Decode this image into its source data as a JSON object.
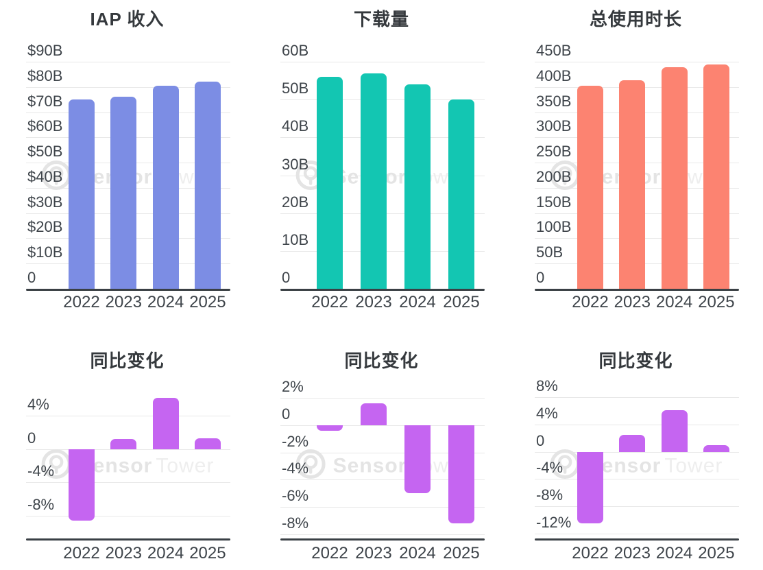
{
  "watermark": {
    "brand_bold": "Sensor",
    "brand_light": "Tower"
  },
  "theme": {
    "background": "#ffffff",
    "grid_color": "#e8e8e8",
    "axis_color": "#3a4045",
    "tick_color": "#3e444a",
    "title_color": "#35393d",
    "watermark_color": "#e4e4e4"
  },
  "chart_data": [
    {
      "name": "iap-revenue",
      "type": "bar",
      "title": "IAP 收入",
      "categories": [
        "2022",
        "2023",
        "2024",
        "2025"
      ],
      "values": [
        75,
        76,
        80.5,
        82
      ],
      "ylim": [
        0,
        90
      ],
      "grid": true,
      "legend": "none",
      "ylabel": "",
      "xlabel": "",
      "ticks": [
        {
          "label": "$90B",
          "value": 90
        },
        {
          "label": "$80B",
          "value": 80
        },
        {
          "label": "$70B",
          "value": 70
        },
        {
          "label": "$60B",
          "value": 60
        },
        {
          "label": "$50B",
          "value": 50
        },
        {
          "label": "$40B",
          "value": 40
        },
        {
          "label": "$30B",
          "value": 30
        },
        {
          "label": "$20B",
          "value": 20
        },
        {
          "label": "$10B",
          "value": 10
        },
        {
          "label": "0",
          "value": 0
        }
      ],
      "bar_color": "#7c8de4"
    },
    {
      "name": "downloads",
      "type": "bar",
      "title": "下载量",
      "categories": [
        "2022",
        "2023",
        "2024",
        "2025"
      ],
      "values": [
        56,
        57,
        54,
        50
      ],
      "ylim": [
        0,
        60
      ],
      "grid": true,
      "legend": "none",
      "ylabel": "",
      "xlabel": "",
      "ticks": [
        {
          "label": "60B",
          "value": 60
        },
        {
          "label": "50B",
          "value": 50
        },
        {
          "label": "40B",
          "value": 40
        },
        {
          "label": "30B",
          "value": 30
        },
        {
          "label": "20B",
          "value": 20
        },
        {
          "label": "10B",
          "value": 10
        },
        {
          "label": "0",
          "value": 0
        }
      ],
      "bar_color": "#13c6b2"
    },
    {
      "name": "total-usage-time",
      "type": "bar",
      "title": "总使用时长",
      "categories": [
        "2022",
        "2023",
        "2024",
        "2025"
      ],
      "values": [
        402,
        413,
        439,
        444
      ],
      "ylim": [
        0,
        450
      ],
      "grid": true,
      "legend": "none",
      "ylabel": "",
      "xlabel": "",
      "ticks": [
        {
          "label": "450B",
          "value": 450
        },
        {
          "label": "400B",
          "value": 400
        },
        {
          "label": "350B",
          "value": 350
        },
        {
          "label": "300B",
          "value": 300
        },
        {
          "label": "250B",
          "value": 250
        },
        {
          "label": "200B",
          "value": 200
        },
        {
          "label": "150B",
          "value": 150
        },
        {
          "label": "100B",
          "value": 100
        },
        {
          "label": "50B",
          "value": 50
        },
        {
          "label": "0",
          "value": 0
        }
      ],
      "bar_color": "#fc8371"
    },
    {
      "name": "iap-revenue-yoy",
      "type": "bar",
      "title": "同比变化",
      "categories": [
        "2022",
        "2023",
        "2024",
        "2025"
      ],
      "values": [
        -8.6,
        1.2,
        6.1,
        1.3
      ],
      "ylim": [
        -8,
        4
      ],
      "grid": true,
      "legend": "none",
      "ylabel": "",
      "xlabel": "",
      "ticks": [
        {
          "label": "4%",
          "value": 4
        },
        {
          "label": "0",
          "value": 0
        },
        {
          "label": "-4%",
          "value": -4
        },
        {
          "label": "-8%",
          "value": -8
        }
      ],
      "bar_color": "#c565f1"
    },
    {
      "name": "downloads-yoy",
      "type": "bar",
      "title": "同比变化",
      "categories": [
        "2022",
        "2023",
        "2024",
        "2025"
      ],
      "values": [
        -0.4,
        1.6,
        -5,
        -7.2
      ],
      "ylim": [
        -8,
        2
      ],
      "grid": true,
      "legend": "none",
      "ylabel": "",
      "xlabel": "",
      "ticks": [
        {
          "label": "2%",
          "value": 2
        },
        {
          "label": "0",
          "value": 0
        },
        {
          "label": "-2%",
          "value": -2
        },
        {
          "label": "-4%",
          "value": -4
        },
        {
          "label": "-6%",
          "value": -6
        },
        {
          "label": "-8%",
          "value": -8
        }
      ],
      "bar_color": "#c565f1"
    },
    {
      "name": "usage-time-yoy",
      "type": "bar",
      "title": "同比变化",
      "categories": [
        "2022",
        "2023",
        "2024",
        "2025"
      ],
      "values": [
        -10.5,
        2.5,
        6.1,
        1
      ],
      "ylim": [
        -12,
        8
      ],
      "grid": true,
      "legend": "none",
      "ylabel": "",
      "xlabel": "",
      "ticks": [
        {
          "label": "8%",
          "value": 8
        },
        {
          "label": "4%",
          "value": 4
        },
        {
          "label": "0",
          "value": 0
        },
        {
          "label": "-4%",
          "value": -4
        },
        {
          "label": "-8%",
          "value": -8
        },
        {
          "label": "-12%",
          "value": -12
        }
      ],
      "bar_color": "#c565f1"
    }
  ]
}
